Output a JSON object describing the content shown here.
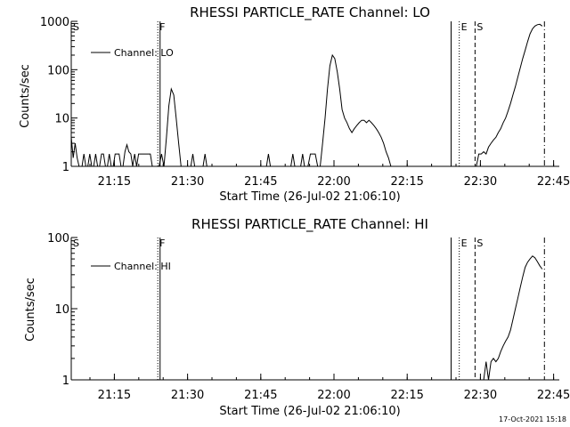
{
  "footer": {
    "timestamp": "17-Oct-2021 15:18"
  },
  "chart_data": [
    {
      "type": "line",
      "title": "RHESSI PARTICLE_RATE Channel: LO",
      "xlabel": "Start Time (26-Jul-02 21:06:10)",
      "ylabel": "Counts/sec",
      "yscale": "log",
      "ylim": [
        1,
        1000
      ],
      "xlim_minutes": [
        0,
        100
      ],
      "x_ticks": [
        "21:15",
        "21:30",
        "21:45",
        "22:00",
        "22:15",
        "22:30",
        "22:45"
      ],
      "y_ticks": [
        "1",
        "10",
        "100",
        "1000"
      ],
      "legend": {
        "label": "Channel: LO",
        "position": "top-left"
      },
      "markers": [
        {
          "label": "S",
          "time": "21:06:10",
          "style": "dotted"
        },
        {
          "label": "F",
          "time": "21:23:54",
          "style": "dotted"
        },
        {
          "label": "",
          "time": "21:24:22",
          "style": "solid"
        },
        {
          "label": "",
          "time": "22:24:00",
          "style": "solid"
        },
        {
          "label": "E",
          "time": "22:25:40",
          "style": "dotted"
        },
        {
          "label": "S",
          "time": "22:28:54",
          "style": "dashed"
        },
        {
          "label": "",
          "time": "22:43:07",
          "style": "dashdot"
        }
      ],
      "series": [
        {
          "name": "Channel: LO",
          "segments": [
            [
              [
                0.0,
                4
              ],
              [
                0.4,
                1.5
              ],
              [
                0.8,
                3
              ],
              [
                1.2,
                1.5
              ],
              [
                1.6,
                1
              ],
              [
                2.2,
                1
              ],
              [
                2.6,
                1.8
              ],
              [
                3.0,
                1
              ],
              [
                3.4,
                1
              ],
              [
                3.8,
                1.8
              ],
              [
                4.2,
                1
              ],
              [
                4.6,
                1
              ],
              [
                5.0,
                1.8
              ],
              [
                5.4,
                1
              ],
              [
                5.8,
                1
              ],
              [
                6.2,
                1.8
              ],
              [
                6.6,
                1.8
              ],
              [
                7.0,
                1
              ],
              [
                7.4,
                1
              ],
              [
                7.8,
                1.8
              ],
              [
                8.2,
                1
              ],
              [
                8.6,
                1
              ],
              [
                9.0,
                1.8
              ],
              [
                9.4,
                1.8
              ],
              [
                9.8,
                1.8
              ],
              [
                10.2,
                1
              ],
              [
                10.6,
                1
              ],
              [
                11.0,
                2
              ],
              [
                11.4,
                2.8
              ],
              [
                11.8,
                2
              ],
              [
                12.2,
                1.8
              ],
              [
                12.6,
                1
              ],
              [
                13.0,
                1.8
              ],
              [
                13.4,
                1
              ],
              [
                13.8,
                1.8
              ],
              [
                14.2,
                1.8
              ],
              [
                14.6,
                1.8
              ],
              [
                15.0,
                1.8
              ],
              [
                15.4,
                1.8
              ],
              [
                15.8,
                1.8
              ],
              [
                16.2,
                1.8
              ],
              [
                16.6,
                1
              ],
              [
                17.0,
                1
              ]
            ],
            [
              [
                18.0,
                1
              ],
              [
                18.5,
                1.8
              ],
              [
                19.0,
                1
              ],
              [
                19.5,
                4
              ],
              [
                20.0,
                18
              ],
              [
                20.5,
                40
              ],
              [
                21.0,
                30
              ],
              [
                21.5,
                10
              ],
              [
                22.0,
                3
              ],
              [
                22.5,
                1
              ]
            ],
            [
              [
                24.5,
                1
              ],
              [
                24.9,
                1.8
              ],
              [
                25.3,
                1
              ]
            ],
            [
              [
                27.0,
                1
              ],
              [
                27.4,
                1.8
              ],
              [
                27.8,
                1
              ]
            ],
            [
              [
                40.0,
                1
              ],
              [
                40.4,
                1.8
              ],
              [
                40.8,
                1
              ]
            ],
            [
              [
                45.0,
                1
              ],
              [
                45.4,
                1.8
              ],
              [
                45.8,
                1
              ]
            ],
            [
              [
                47.0,
                1
              ],
              [
                47.4,
                1.8
              ],
              [
                47.8,
                1
              ]
            ],
            [
              [
                48.5,
                1
              ],
              [
                49.0,
                1.8
              ],
              [
                49.5,
                1.8
              ],
              [
                50.0,
                1.8
              ],
              [
                50.5,
                1
              ]
            ],
            [
              [
                51.0,
                1
              ],
              [
                51.5,
                3
              ],
              [
                52.0,
                10
              ],
              [
                52.5,
                40
              ],
              [
                53.0,
                120
              ],
              [
                53.5,
                200
              ],
              [
                54.0,
                170
              ],
              [
                54.5,
                90
              ],
              [
                55.0,
                40
              ],
              [
                55.5,
                15
              ],
              [
                56.0,
                10
              ],
              [
                56.5,
                8
              ],
              [
                57.0,
                6
              ],
              [
                57.5,
                5
              ],
              [
                58.0,
                6
              ],
              [
                58.5,
                7
              ],
              [
                59.0,
                8
              ],
              [
                59.5,
                9
              ],
              [
                60.0,
                9
              ],
              [
                60.5,
                8
              ],
              [
                61.0,
                9
              ],
              [
                61.5,
                8
              ],
              [
                62.0,
                7
              ],
              [
                62.5,
                6
              ],
              [
                63.0,
                5
              ],
              [
                63.5,
                4
              ],
              [
                64.0,
                3
              ],
              [
                64.5,
                2
              ],
              [
                65.0,
                1.5
              ],
              [
                65.5,
                1
              ]
            ],
            [
              [
                83.0,
                1
              ],
              [
                83.5,
                1.8
              ],
              [
                84.0,
                1.8
              ],
              [
                84.5,
                2
              ],
              [
                85.0,
                1.8
              ],
              [
                85.5,
                2.5
              ],
              [
                86.0,
                3
              ],
              [
                86.5,
                3.5
              ],
              [
                87.0,
                4
              ],
              [
                87.5,
                5
              ],
              [
                88.0,
                6
              ],
              [
                88.5,
                8
              ],
              [
                89.0,
                10
              ],
              [
                89.5,
                14
              ],
              [
                90.0,
                20
              ],
              [
                90.5,
                30
              ],
              [
                91.0,
                45
              ],
              [
                91.5,
                70
              ],
              [
                92.0,
                110
              ],
              [
                92.5,
                170
              ],
              [
                93.0,
                250
              ],
              [
                93.5,
                380
              ],
              [
                94.0,
                550
              ],
              [
                94.5,
                700
              ],
              [
                95.0,
                800
              ],
              [
                95.5,
                850
              ],
              [
                96.0,
                870
              ],
              [
                96.5,
                800
              ]
            ]
          ]
        }
      ]
    },
    {
      "type": "line",
      "title": "RHESSI PARTICLE_RATE Channel: HI",
      "xlabel": "Start Time (26-Jul-02 21:06:10)",
      "ylabel": "Counts/sec",
      "yscale": "log",
      "ylim": [
        1,
        100
      ],
      "xlim_minutes": [
        0,
        100
      ],
      "x_ticks": [
        "21:15",
        "21:30",
        "21:45",
        "22:00",
        "22:15",
        "22:30",
        "22:45"
      ],
      "y_ticks": [
        "1",
        "10",
        "100"
      ],
      "legend": {
        "label": "Channel: HI",
        "position": "top-left"
      },
      "markers": [
        {
          "label": "S",
          "time": "21:06:10",
          "style": "dotted"
        },
        {
          "label": "F",
          "time": "21:23:54",
          "style": "dotted"
        },
        {
          "label": "",
          "time": "21:24:22",
          "style": "solid"
        },
        {
          "label": "",
          "time": "22:24:00",
          "style": "solid"
        },
        {
          "label": "E",
          "time": "22:25:40",
          "style": "dotted"
        },
        {
          "label": "S",
          "time": "22:28:54",
          "style": "dashed"
        },
        {
          "label": "",
          "time": "22:43:07",
          "style": "dashdot"
        }
      ],
      "series": [
        {
          "name": "Channel: HI",
          "segments": [
            [
              [
                84.5,
                1
              ],
              [
                85.0,
                1.8
              ],
              [
                85.5,
                1
              ],
              [
                86.0,
                1.8
              ],
              [
                86.5,
                2
              ],
              [
                87.0,
                1.8
              ],
              [
                87.5,
                2
              ],
              [
                88.0,
                2.5
              ],
              [
                88.5,
                3
              ],
              [
                89.0,
                3.5
              ],
              [
                89.5,
                4
              ],
              [
                90.0,
                5
              ],
              [
                90.5,
                7
              ],
              [
                91.0,
                10
              ],
              [
                91.5,
                14
              ],
              [
                92.0,
                20
              ],
              [
                92.5,
                28
              ],
              [
                93.0,
                38
              ],
              [
                93.5,
                45
              ],
              [
                94.0,
                50
              ],
              [
                94.5,
                55
              ],
              [
                95.0,
                52
              ],
              [
                95.5,
                46
              ],
              [
                96.0,
                40
              ],
              [
                96.5,
                36
              ]
            ]
          ]
        }
      ]
    }
  ]
}
